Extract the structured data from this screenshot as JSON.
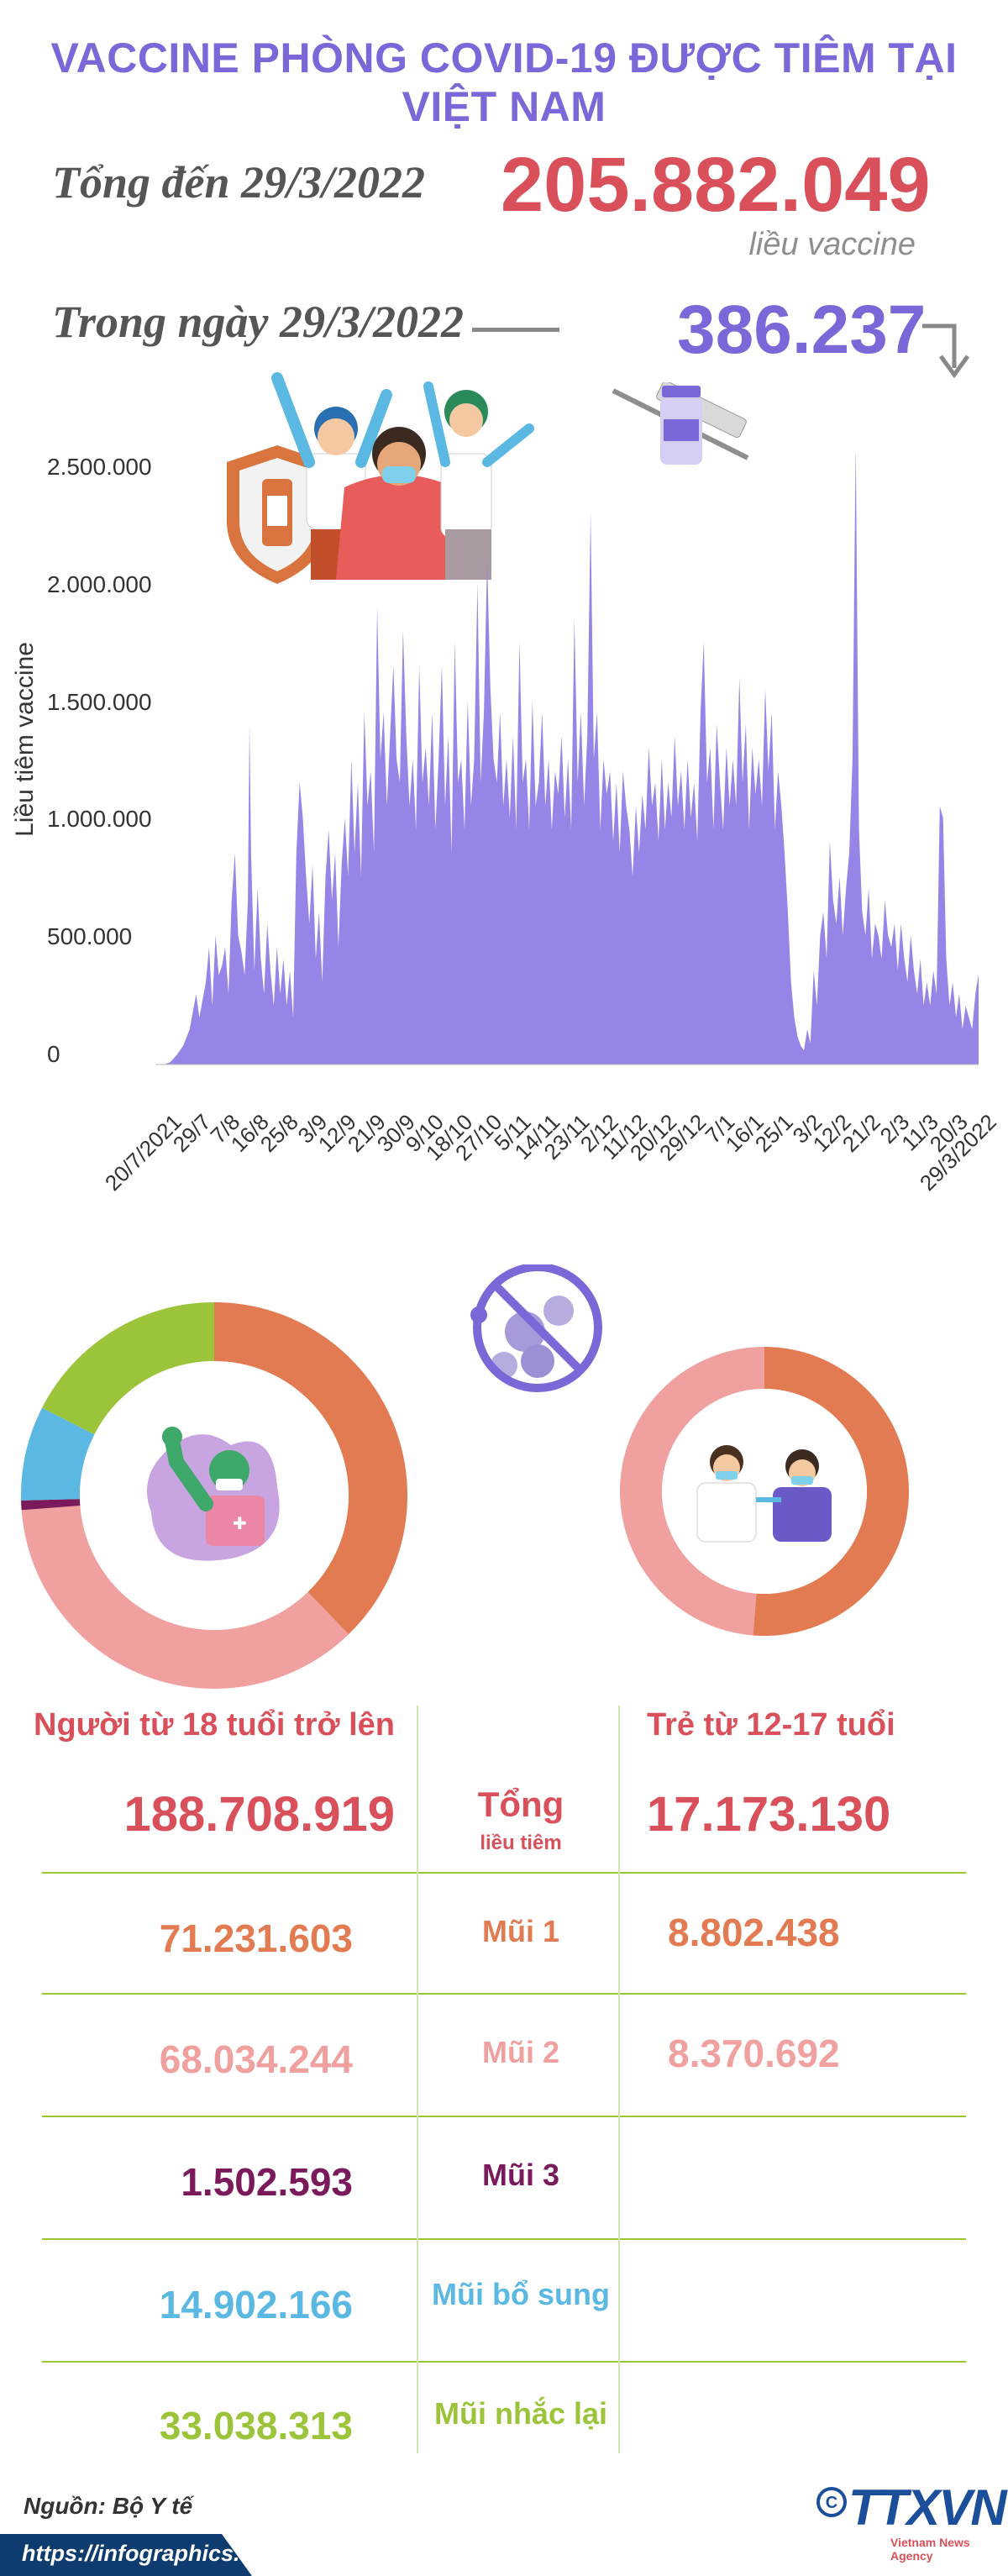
{
  "header": {
    "title": "VACCINE PHÒNG COVID-19 ĐƯỢC TIÊM TẠI VIỆT NAM",
    "total_label": "Tổng đến 29/3/2022",
    "total_value": "205.882.049",
    "total_unit": "liều vaccine",
    "day_label": "Trong ngày 29/3/2022",
    "day_value": "386.237"
  },
  "colors": {
    "title": "#7b67d8",
    "area": "#9685e6",
    "total": "#d9505a",
    "mui1": "#e27a52",
    "mui2": "#f1a0a0",
    "mui3": "#7b1a5a",
    "bosung": "#5ab8e3",
    "nhaclai": "#9cc43a",
    "icon_purple": "#8b6ccd"
  },
  "chart_data": {
    "type": "area",
    "ylabel": "Liều tiêm vaccine",
    "ylim": [
      0,
      2600000
    ],
    "yticks": [
      "0",
      "500.000",
      "1.000.000",
      "1.500.000",
      "2.000.000",
      "2.500.000"
    ],
    "ytick_values": [
      0,
      500000,
      1000000,
      1500000,
      2000000,
      2500000
    ],
    "xlim": [
      0,
      252
    ],
    "x_ticks": [
      {
        "label": "20/7/2021",
        "day": 0
      },
      {
        "label": "29/7",
        "day": 9
      },
      {
        "label": "7/8",
        "day": 18
      },
      {
        "label": "16/8",
        "day": 27
      },
      {
        "label": "25/8",
        "day": 36
      },
      {
        "label": "3/9",
        "day": 45
      },
      {
        "label": "12/9",
        "day": 54
      },
      {
        "label": "21/9",
        "day": 63
      },
      {
        "label": "30/9",
        "day": 72
      },
      {
        "label": "9/10",
        "day": 81
      },
      {
        "label": "18/10",
        "day": 90
      },
      {
        "label": "27/10",
        "day": 99
      },
      {
        "label": "5/11",
        "day": 108
      },
      {
        "label": "14/11",
        "day": 117
      },
      {
        "label": "23/11",
        "day": 126
      },
      {
        "label": "2/12",
        "day": 135
      },
      {
        "label": "11/12",
        "day": 144
      },
      {
        "label": "20/12",
        "day": 153
      },
      {
        "label": "29/12",
        "day": 162
      },
      {
        "label": "7/1",
        "day": 171
      },
      {
        "label": "16/1",
        "day": 180
      },
      {
        "label": "25/1",
        "day": 189
      },
      {
        "label": "3/2",
        "day": 198
      },
      {
        "label": "12/2",
        "day": 207
      },
      {
        "label": "21/2",
        "day": 216
      },
      {
        "label": "2/3",
        "day": 225
      },
      {
        "label": "11/3",
        "day": 234
      },
      {
        "label": "20/3",
        "day": 243
      },
      {
        "label": "29/3/2022",
        "day": 252
      }
    ],
    "series": [
      {
        "points": [
          [
            0,
            0
          ],
          [
            2,
            10000
          ],
          [
            4,
            40000
          ],
          [
            6,
            80000
          ],
          [
            8,
            150000
          ],
          [
            10,
            300000
          ],
          [
            11,
            200000
          ],
          [
            13,
            350000
          ],
          [
            14,
            500000
          ],
          [
            15,
            250000
          ],
          [
            16,
            550000
          ],
          [
            17,
            380000
          ],
          [
            18,
            420000
          ],
          [
            19,
            500000
          ],
          [
            20,
            300000
          ],
          [
            21,
            700000
          ],
          [
            22,
            900000
          ],
          [
            23,
            550000
          ],
          [
            24,
            480000
          ],
          [
            25,
            380000
          ],
          [
            26,
            700000
          ],
          [
            26.5,
            1450000
          ],
          [
            27,
            900000
          ],
          [
            28,
            400000
          ],
          [
            29,
            750000
          ],
          [
            30,
            450000
          ],
          [
            31,
            300000
          ],
          [
            32,
            600000
          ],
          [
            33,
            400000
          ],
          [
            34,
            250000
          ],
          [
            35,
            500000
          ],
          [
            36,
            300000
          ],
          [
            37,
            450000
          ],
          [
            38,
            250000
          ],
          [
            39,
            400000
          ],
          [
            40,
            200000
          ],
          [
            41,
            900000
          ],
          [
            42,
            1200000
          ],
          [
            43,
            1050000
          ],
          [
            44,
            800000
          ],
          [
            45,
            600000
          ],
          [
            46,
            850000
          ],
          [
            47,
            450000
          ],
          [
            48,
            650000
          ],
          [
            49,
            350000
          ],
          [
            50,
            800000
          ],
          [
            51,
            1000000
          ],
          [
            52,
            700000
          ],
          [
            53,
            900000
          ],
          [
            54,
            500000
          ],
          [
            55,
            850000
          ],
          [
            56,
            1050000
          ],
          [
            57,
            800000
          ],
          [
            58,
            1300000
          ],
          [
            59,
            900000
          ],
          [
            60,
            1200000
          ],
          [
            61,
            800000
          ],
          [
            62,
            1500000
          ],
          [
            63,
            1100000
          ],
          [
            64,
            1250000
          ],
          [
            65,
            900000
          ],
          [
            66,
            1950000
          ],
          [
            67,
            1300000
          ],
          [
            68,
            1500000
          ],
          [
            69,
            1100000
          ],
          [
            70,
            1400000
          ],
          [
            71,
            1700000
          ],
          [
            72,
            1300000
          ],
          [
            73,
            1200000
          ],
          [
            74,
            1850000
          ],
          [
            75,
            1400000
          ],
          [
            76,
            1100000
          ],
          [
            77,
            1300000
          ],
          [
            78,
            1000000
          ],
          [
            79,
            1700000
          ],
          [
            80,
            1200000
          ],
          [
            81,
            1350000
          ],
          [
            82,
            1100000
          ],
          [
            83,
            1500000
          ],
          [
            84,
            1000000
          ],
          [
            85,
            1300000
          ],
          [
            86,
            1700000
          ],
          [
            87,
            1100000
          ],
          [
            88,
            1400000
          ],
          [
            89,
            900000
          ],
          [
            90,
            1800000
          ],
          [
            91,
            1200000
          ],
          [
            92,
            1300000
          ],
          [
            93,
            1000000
          ],
          [
            94,
            1550000
          ],
          [
            95,
            1100000
          ],
          [
            96,
            1300000
          ],
          [
            97,
            2050000
          ],
          [
            98,
            1200000
          ],
          [
            99,
            1500000
          ],
          [
            100,
            2150000
          ],
          [
            101,
            1600000
          ],
          [
            102,
            1300000
          ],
          [
            103,
            1200000
          ],
          [
            104,
            1500000
          ],
          [
            105,
            1100000
          ],
          [
            106,
            1300000
          ],
          [
            107,
            1050000
          ],
          [
            108,
            1400000
          ],
          [
            109,
            1000000
          ],
          [
            110,
            1800000
          ],
          [
            111,
            1200000
          ],
          [
            112,
            1300000
          ],
          [
            113,
            1000000
          ],
          [
            114,
            1550000
          ],
          [
            115,
            1100000
          ],
          [
            116,
            1200000
          ],
          [
            117,
            1500000
          ],
          [
            118,
            1100000
          ],
          [
            119,
            1300000
          ],
          [
            120,
            1000000
          ],
          [
            121,
            1250000
          ],
          [
            122,
            1150000
          ],
          [
            123,
            1400000
          ],
          [
            124,
            1050000
          ],
          [
            125,
            1300000
          ],
          [
            126,
            1000000
          ],
          [
            127,
            1900000
          ],
          [
            128,
            1200000
          ],
          [
            129,
            1500000
          ],
          [
            130,
            1100000
          ],
          [
            131,
            1400000
          ],
          [
            132,
            2350000
          ],
          [
            133,
            1300000
          ],
          [
            134,
            1500000
          ],
          [
            135,
            1000000
          ],
          [
            136,
            1300000
          ],
          [
            137,
            1150000
          ],
          [
            138,
            1250000
          ],
          [
            139,
            950000
          ],
          [
            140,
            1200000
          ],
          [
            141,
            900000
          ],
          [
            142,
            1250000
          ],
          [
            143,
            1100000
          ],
          [
            144,
            1000000
          ],
          [
            145,
            800000
          ],
          [
            146,
            1100000
          ],
          [
            147,
            900000
          ],
          [
            148,
            1150000
          ],
          [
            149,
            1000000
          ],
          [
            150,
            1350000
          ],
          [
            151,
            1100000
          ],
          [
            152,
            1200000
          ],
          [
            153,
            950000
          ],
          [
            154,
            1300000
          ],
          [
            155,
            1000000
          ],
          [
            156,
            1200000
          ],
          [
            157,
            1050000
          ],
          [
            158,
            1400000
          ],
          [
            159,
            1100000
          ],
          [
            160,
            1250000
          ],
          [
            161,
            1000000
          ],
          [
            162,
            1300000
          ],
          [
            163,
            1050000
          ],
          [
            164,
            1200000
          ],
          [
            165,
            950000
          ],
          [
            166,
            1500000
          ],
          [
            167,
            1800000
          ],
          [
            168,
            1200000
          ],
          [
            169,
            1350000
          ],
          [
            170,
            1000000
          ],
          [
            171,
            1450000
          ],
          [
            172,
            1200000
          ],
          [
            173,
            1000000
          ],
          [
            174,
            1350000
          ],
          [
            175,
            1100000
          ],
          [
            176,
            1300000
          ],
          [
            177,
            1100000
          ],
          [
            178,
            1650000
          ],
          [
            179,
            1200000
          ],
          [
            180,
            1450000
          ],
          [
            181,
            1000000
          ],
          [
            182,
            1350000
          ],
          [
            183,
            1150000
          ],
          [
            184,
            1300000
          ],
          [
            185,
            1100000
          ],
          [
            186,
            1600000
          ],
          [
            187,
            1250000
          ],
          [
            188,
            1500000
          ],
          [
            189,
            1000000
          ],
          [
            190,
            1250000
          ],
          [
            191,
            1100000
          ],
          [
            192,
            900000
          ],
          [
            193,
            650000
          ],
          [
            194,
            350000
          ],
          [
            195,
            200000
          ],
          [
            196,
            120000
          ],
          [
            197,
            80000
          ],
          [
            198,
            60000
          ],
          [
            199,
            150000
          ],
          [
            200,
            90000
          ],
          [
            201,
            400000
          ],
          [
            202,
            250000
          ],
          [
            203,
            550000
          ],
          [
            204,
            650000
          ],
          [
            205,
            450000
          ],
          [
            206,
            950000
          ],
          [
            207,
            700000
          ],
          [
            208,
            600000
          ],
          [
            209,
            800000
          ],
          [
            210,
            550000
          ],
          [
            211,
            750000
          ],
          [
            212,
            900000
          ],
          [
            213,
            1300000
          ],
          [
            214,
            2650000
          ],
          [
            215,
            1000000
          ],
          [
            216,
            650000
          ],
          [
            217,
            550000
          ],
          [
            218,
            750000
          ],
          [
            219,
            450000
          ],
          [
            220,
            600000
          ],
          [
            221,
            550000
          ],
          [
            222,
            450000
          ],
          [
            223,
            700000
          ],
          [
            224,
            550000
          ],
          [
            225,
            500000
          ],
          [
            226,
            600000
          ],
          [
            227,
            400000
          ],
          [
            228,
            600000
          ],
          [
            229,
            450000
          ],
          [
            230,
            350000
          ],
          [
            231,
            550000
          ],
          [
            232,
            400000
          ],
          [
            233,
            300000
          ],
          [
            234,
            450000
          ],
          [
            235,
            250000
          ],
          [
            236,
            350000
          ],
          [
            237,
            250000
          ],
          [
            238,
            400000
          ],
          [
            239,
            300000
          ],
          [
            240,
            1100000
          ],
          [
            241,
            1050000
          ],
          [
            242,
            450000
          ],
          [
            243,
            250000
          ],
          [
            244,
            350000
          ],
          [
            245,
            200000
          ],
          [
            246,
            300000
          ],
          [
            247,
            150000
          ],
          [
            248,
            250000
          ],
          [
            249,
            200000
          ],
          [
            250,
            150000
          ],
          [
            251,
            300000
          ],
          [
            252,
            386237
          ]
        ]
      }
    ]
  },
  "donut_adults": {
    "segments": [
      {
        "key": "mui1",
        "value": 71231603
      },
      {
        "key": "mui2",
        "value": 68034244
      },
      {
        "key": "mui3",
        "value": 1502593
      },
      {
        "key": "bosung",
        "value": 14902166
      },
      {
        "key": "nhaclai",
        "value": 33038313
      }
    ]
  },
  "donut_kids": {
    "segments": [
      {
        "key": "mui1",
        "value": 8802438
      },
      {
        "key": "mui2",
        "value": 8370692
      }
    ]
  },
  "table": {
    "col_adults": "Người từ 18 tuổi trở lên",
    "col_kids": "Trẻ từ 12-17 tuổi",
    "total_label": "Tổng",
    "total_sublabel": "liều tiêm",
    "adults_total": "188.708.919",
    "kids_total": "17.173.130",
    "rows": [
      {
        "label": "Mũi 1",
        "adults": "71.231.603",
        "kids": "8.802.438"
      },
      {
        "label": "Mũi 2",
        "adults": "68.034.244",
        "kids": "8.370.692"
      },
      {
        "label": "Mũi 3",
        "adults": "1.502.593",
        "kids": ""
      },
      {
        "label": "Mũi bổ sung",
        "adults": "14.902.166",
        "kids": ""
      },
      {
        "label": "Mũi nhắc lại",
        "adults": "33.038.313",
        "kids": ""
      }
    ]
  },
  "footer": {
    "source": "Nguồn: Bộ Y tế",
    "url": "https://infographics.vn",
    "logo": "TTXVN",
    "logo_sub": "Vietnam News Agency"
  }
}
